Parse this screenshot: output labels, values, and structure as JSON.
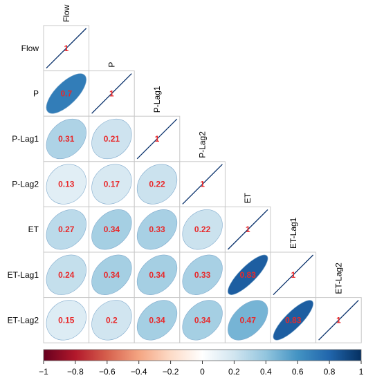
{
  "chart_data": {
    "type": "heatmap",
    "variables": [
      "Flow",
      "P",
      "P-Lag1",
      "P-Lag2",
      "ET",
      "ET-Lag1",
      "ET-Lag2"
    ],
    "matrix": [
      [
        1
      ],
      [
        0.7,
        1
      ],
      [
        0.31,
        0.21,
        1
      ],
      [
        0.13,
        0.17,
        0.22,
        1
      ],
      [
        0.27,
        0.34,
        0.33,
        0.22,
        1
      ],
      [
        0.24,
        0.34,
        0.34,
        0.33,
        0.83,
        1
      ],
      [
        0.15,
        0.2,
        0.34,
        0.34,
        0.47,
        0.83,
        1
      ]
    ],
    "labels": [
      [
        "1"
      ],
      [
        "0.7",
        "1"
      ],
      [
        "0.31",
        "0.21",
        "1"
      ],
      [
        "0.13",
        "0.17",
        "0.22",
        "1"
      ],
      [
        "0.27",
        "0.34",
        "0.33",
        "0.22",
        "1"
      ],
      [
        "0.24",
        "0.34",
        "0.34",
        "0.33",
        "0.83",
        "1"
      ],
      [
        "0.15",
        "0.2",
        "0.34",
        "0.34",
        "0.47",
        "0.83",
        "1"
      ]
    ],
    "layout": "lower-triangle",
    "method": "ellipse",
    "colorbar": {
      "range": [
        -1,
        1
      ],
      "ticks": [
        "−1",
        "−0.8",
        "−0.6",
        "−0.4",
        "−0.2",
        "0",
        "0.2",
        "0.4",
        "0.6",
        "0.8",
        "1"
      ],
      "colors": [
        "#67001f",
        "#b2182b",
        "#d6604d",
        "#f4a582",
        "#fddbc7",
        "#ffffff",
        "#d1e5f0",
        "#92c5de",
        "#4393c3",
        "#2166ac",
        "#053061"
      ]
    }
  }
}
